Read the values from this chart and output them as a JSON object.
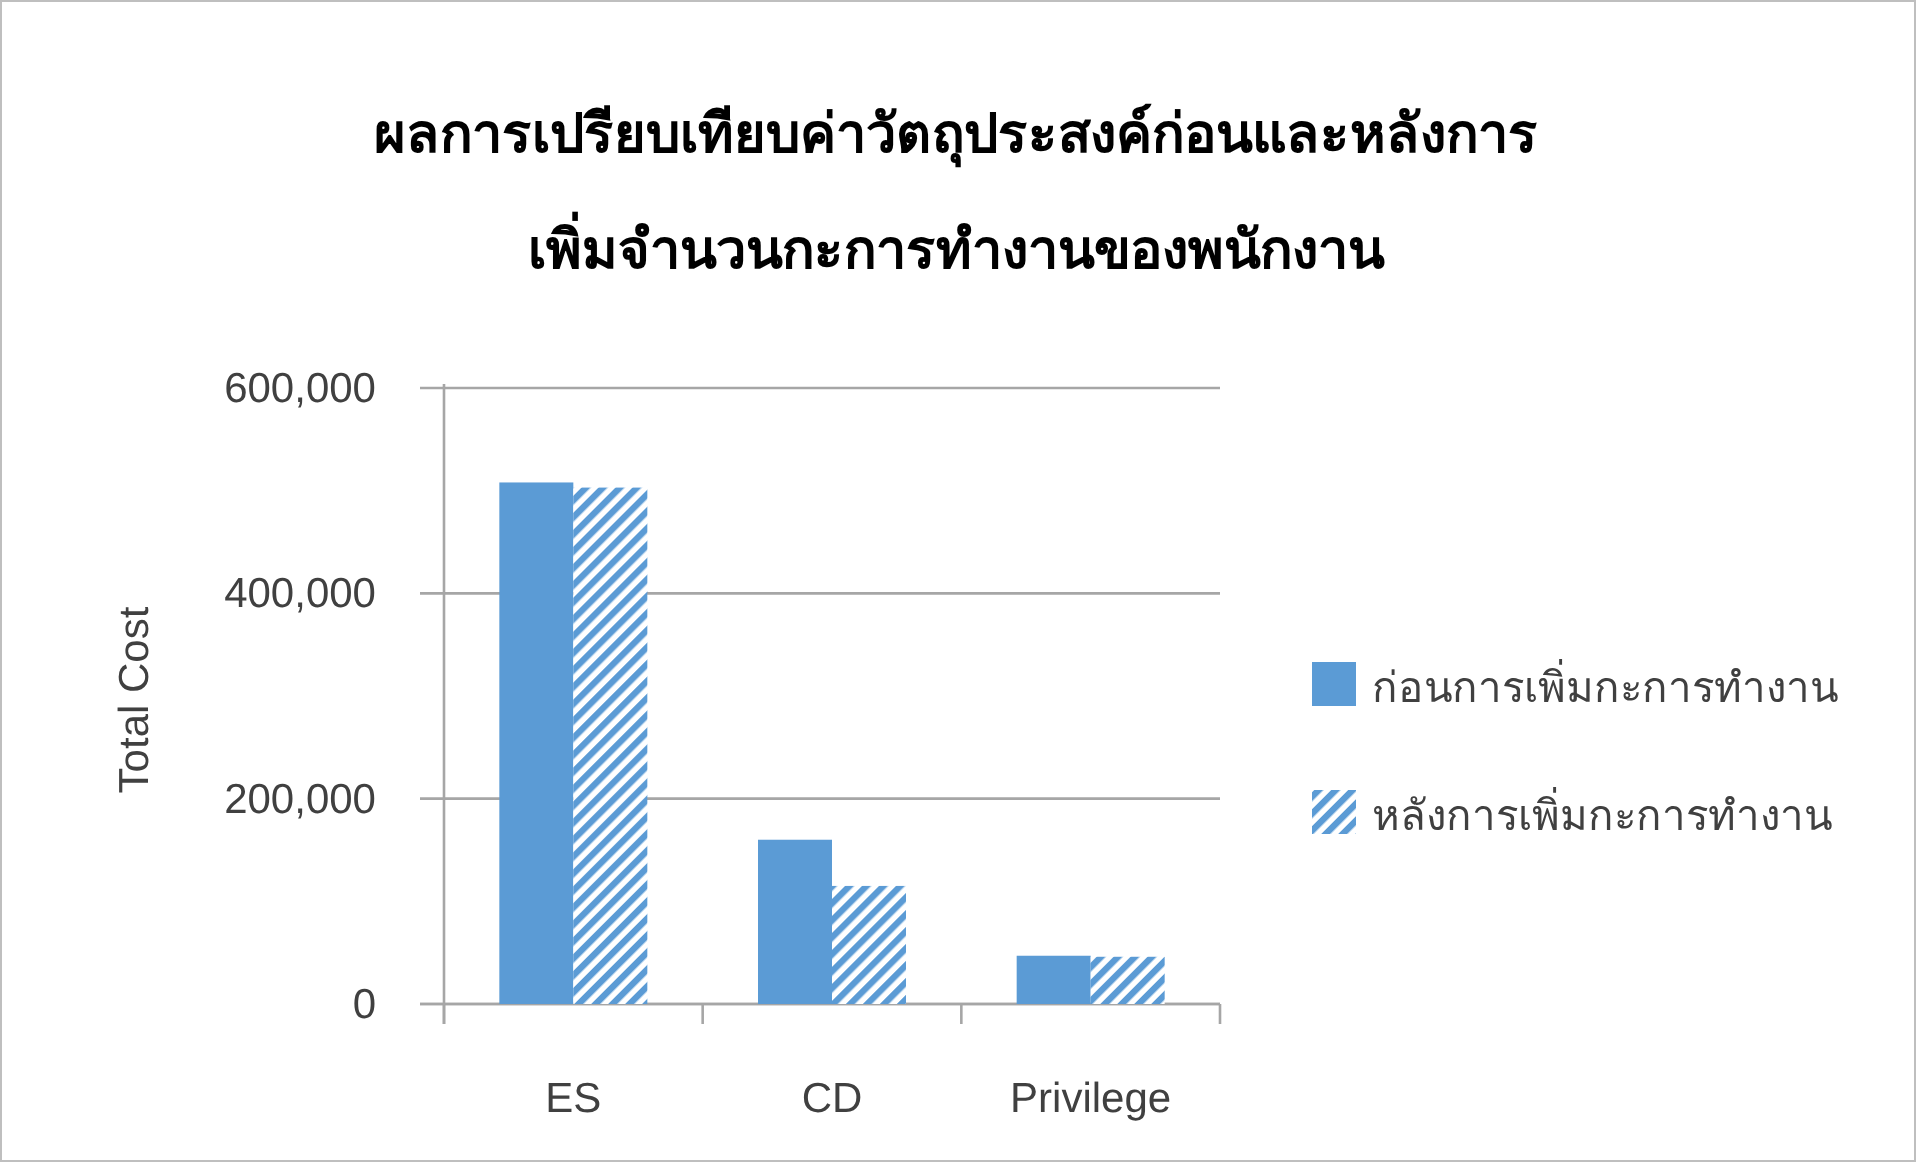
{
  "chart_data": {
    "type": "bar",
    "title": "ผลการเปรียบเทียบค่าวัตถุประสงค์ก่อนและหลังการเพิ่มจำนวนกะการทำงานของพนักงาน",
    "ylabel": "Total Cost",
    "categories": [
      "ES",
      "CD",
      "Privilege"
    ],
    "series": [
      {
        "name": "ก่อนการเพิ่มกะการทำงาน",
        "color": "#5b9bd5",
        "values": [
          508000,
          160000,
          47000
        ]
      },
      {
        "name": "หลังการเพิ่มกะการทำงาน",
        "color": "#5b9bd5",
        "values": [
          503000,
          115000,
          46000
        ]
      }
    ],
    "ylim": [
      0,
      600000
    ],
    "yticks": [
      {
        "value": 0,
        "label": "0"
      },
      {
        "value": 200000,
        "label": "200,000"
      },
      {
        "value": 400000,
        "label": "400,000"
      },
      {
        "value": 600000,
        "label": "600,000"
      }
    ],
    "grid": "y",
    "legend": "right"
  }
}
